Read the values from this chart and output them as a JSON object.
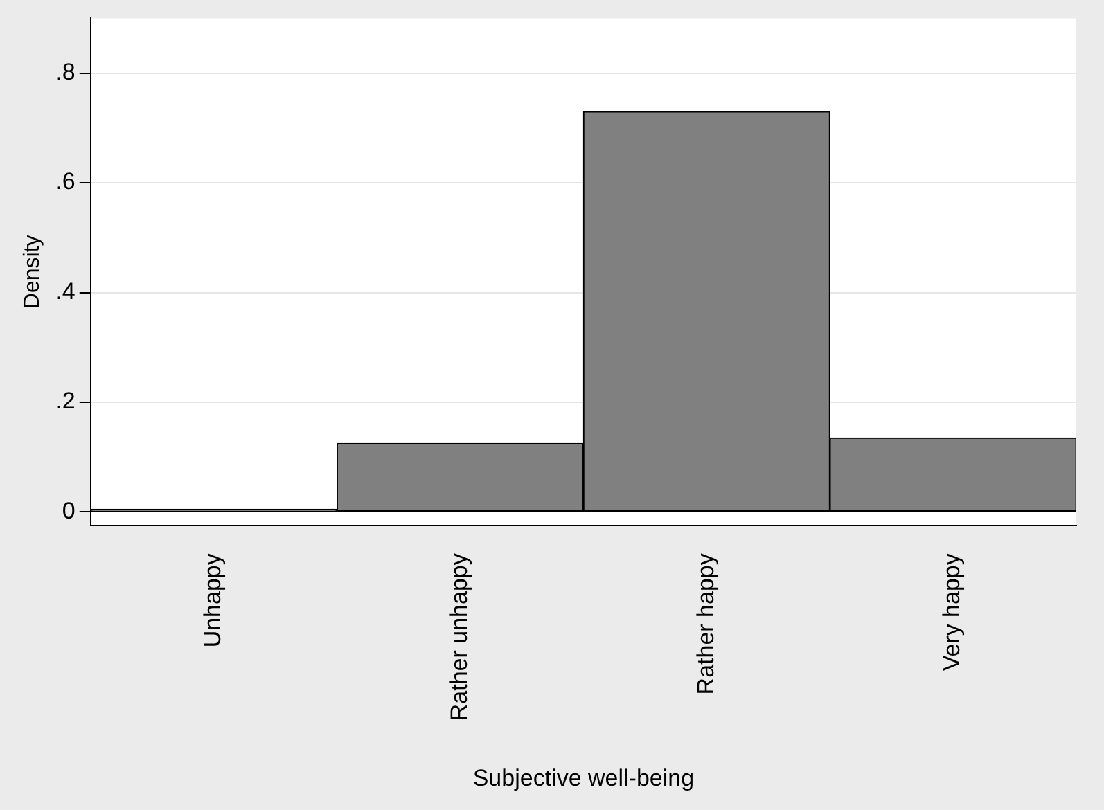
{
  "chart_data": {
    "type": "bar",
    "xlabel": "Subjective well-being",
    "ylabel": "Density",
    "categories": [
      "Unhappy",
      "Rather unhappy",
      "Rather happy",
      "Very happy"
    ],
    "values": [
      0.005,
      0.125,
      0.73,
      0.135
    ],
    "color": "#808080",
    "ylim": [
      -0.025,
      0.9
    ],
    "yticks": [
      {
        "value": 0,
        "label": "0"
      },
      {
        "value": 0.2,
        "label": ".2"
      },
      {
        "value": 0.4,
        "label": ".4"
      },
      {
        "value": 0.6,
        "label": ".6"
      },
      {
        "value": 0.8,
        "label": ".8"
      }
    ],
    "grid": "y",
    "legend": false
  }
}
